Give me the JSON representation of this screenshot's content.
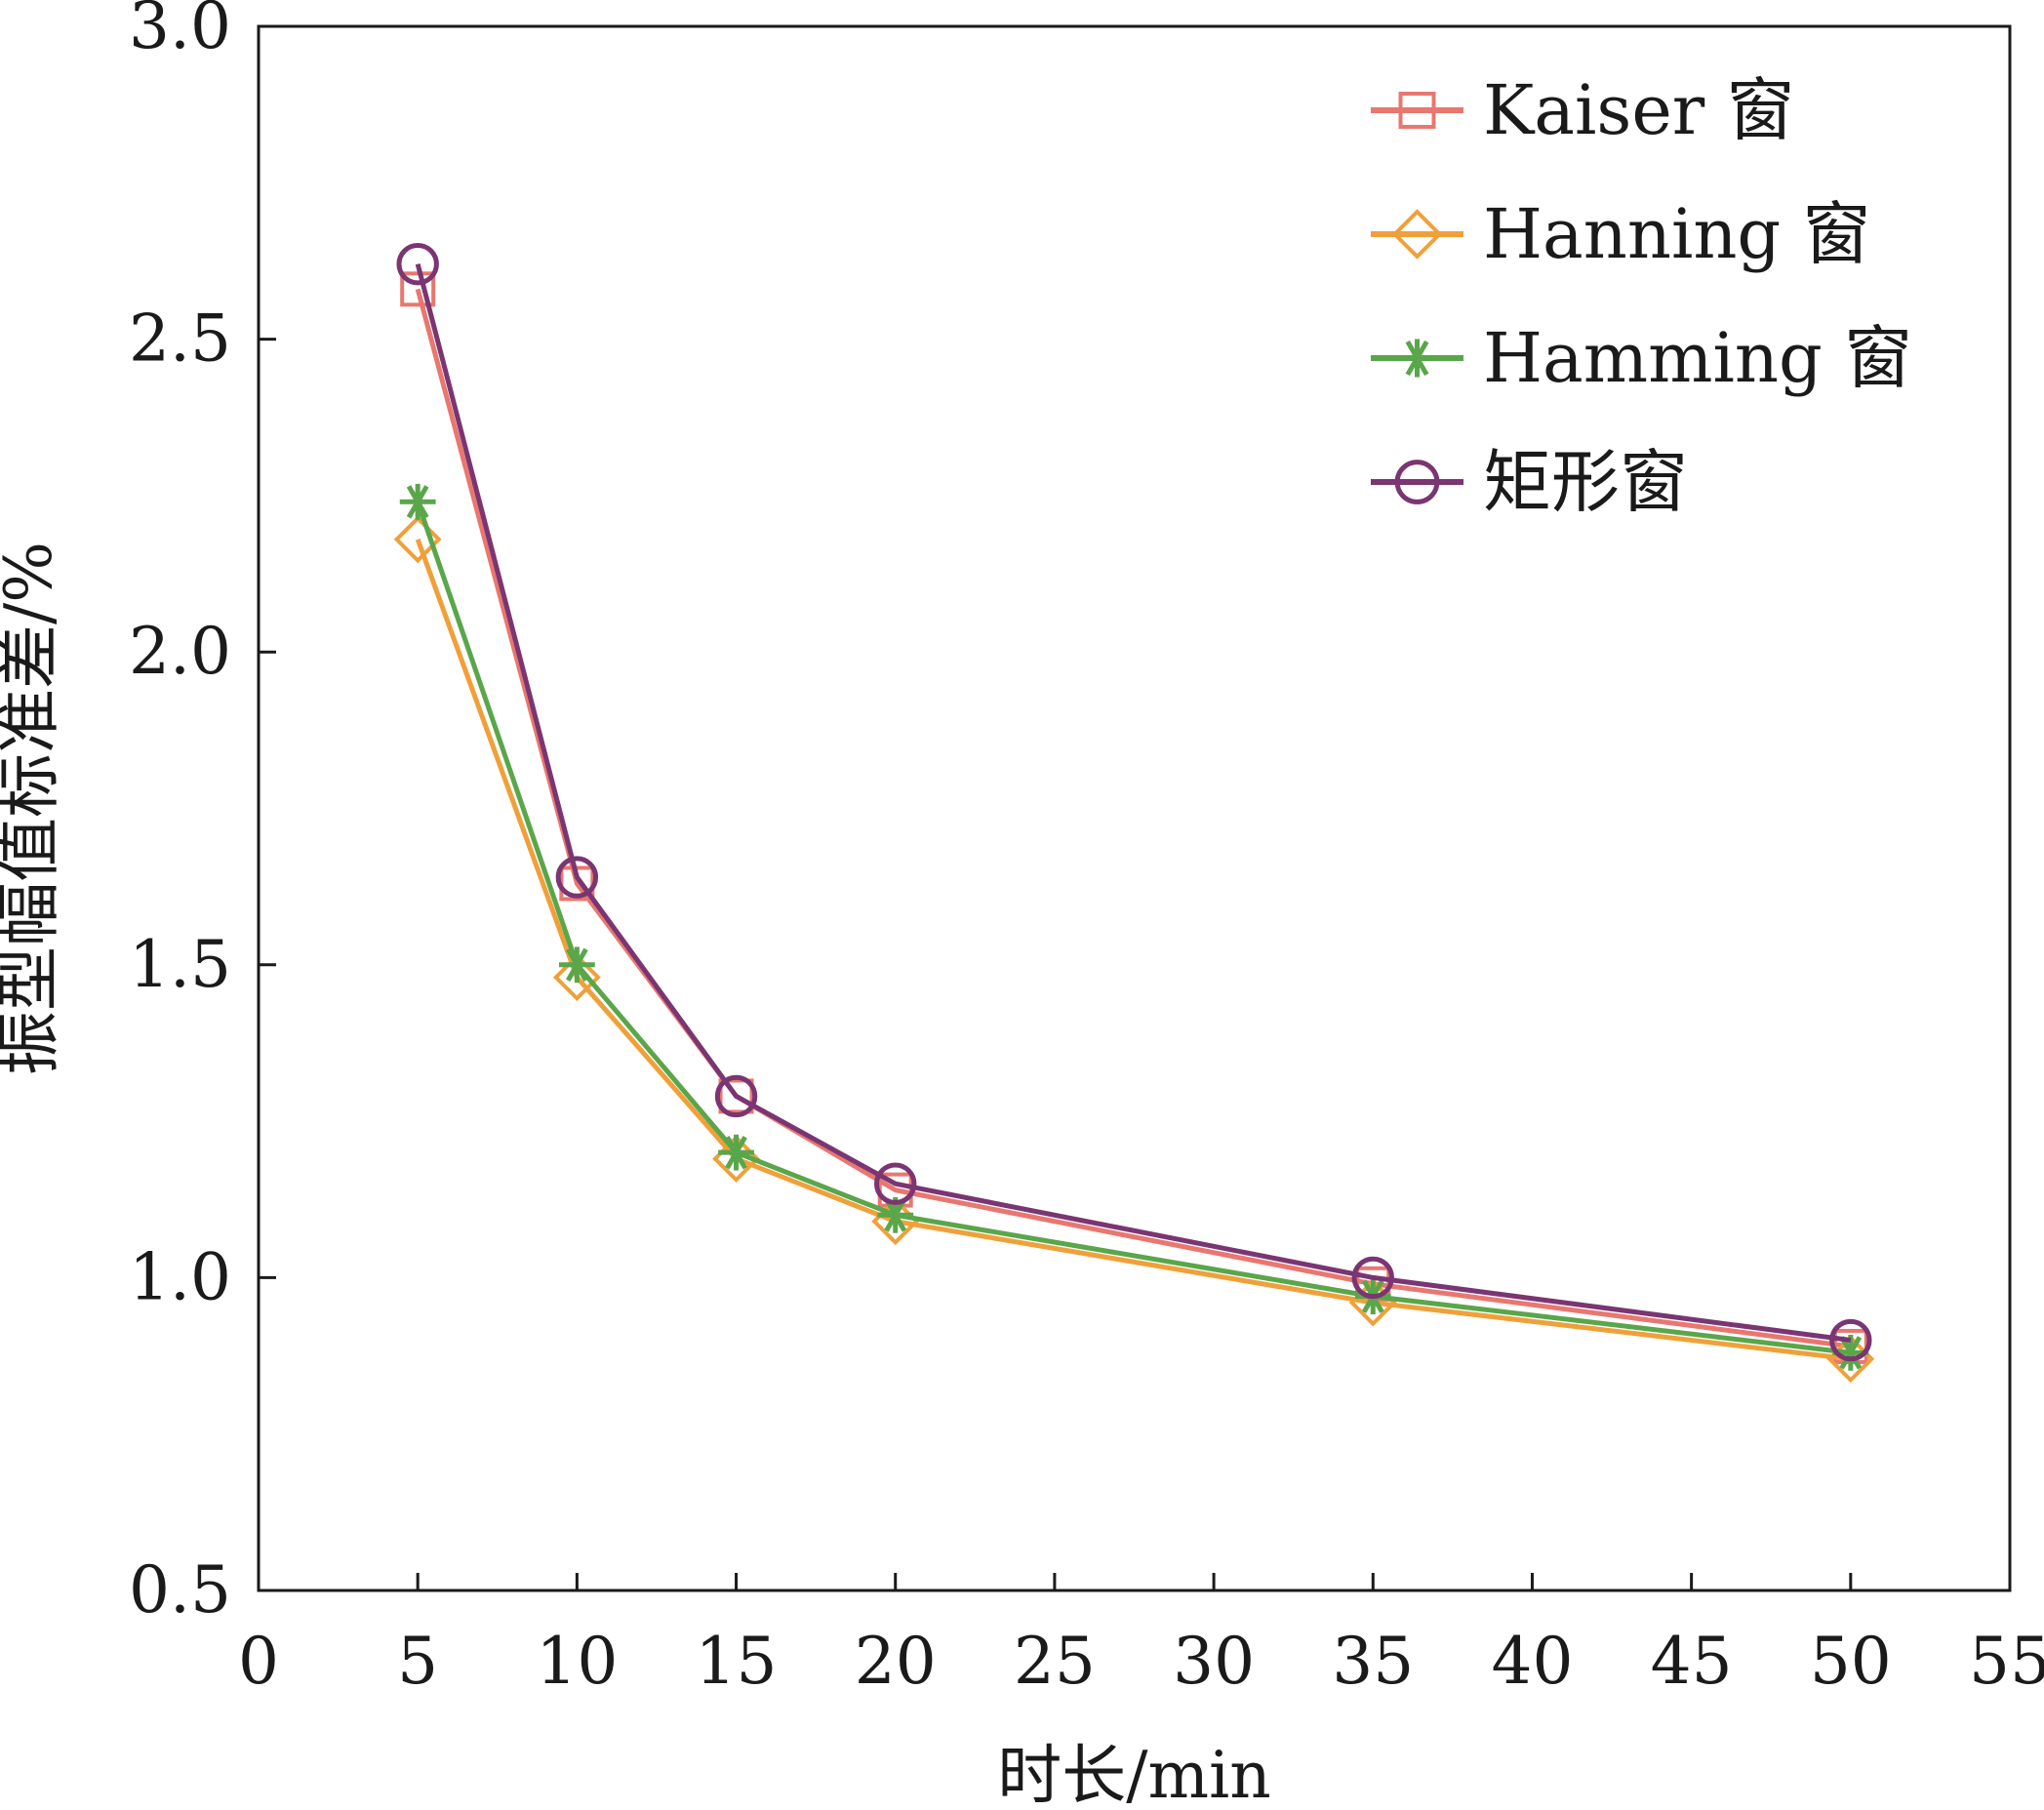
{
  "chart_data": {
    "type": "line",
    "xlabel": "时长/min",
    "ylabel": "振型幅值标准差/%",
    "xlim": [
      0,
      55
    ],
    "ylim": [
      0.5,
      3.0
    ],
    "xticks": [
      0,
      5,
      10,
      15,
      20,
      25,
      30,
      35,
      40,
      45,
      50,
      55
    ],
    "yticks": [
      0.5,
      1.0,
      1.5,
      2.0,
      2.5,
      3.0
    ],
    "xtick_labels": [
      "0",
      "5",
      "10",
      "15",
      "20",
      "25",
      "30",
      "35",
      "40",
      "45",
      "50",
      "55"
    ],
    "ytick_labels": [
      "0.5",
      "1.0",
      "1.5",
      "2.0",
      "2.5",
      "3.0"
    ],
    "x": [
      5,
      10,
      15,
      20,
      35,
      50
    ],
    "grid": false,
    "legend_position": "top-right",
    "series": [
      {
        "name": "Kaiser 窗",
        "marker": "square",
        "color": "#e8776f",
        "values": [
          2.58,
          1.63,
          1.29,
          1.14,
          0.99,
          0.89
        ]
      },
      {
        "name": "Hanning 窗",
        "marker": "diamond",
        "color": "#f0a03a",
        "values": [
          2.18,
          1.48,
          1.19,
          1.09,
          0.96,
          0.87
        ]
      },
      {
        "name": "Hamming 窗",
        "marker": "asterisk",
        "color": "#5aa64a",
        "values": [
          2.24,
          1.5,
          1.2,
          1.1,
          0.97,
          0.88
        ]
      },
      {
        "name": "矩形窗",
        "marker": "circle",
        "color": "#7a3572",
        "values": [
          2.62,
          1.64,
          1.29,
          1.15,
          1.0,
          0.9
        ]
      }
    ]
  }
}
